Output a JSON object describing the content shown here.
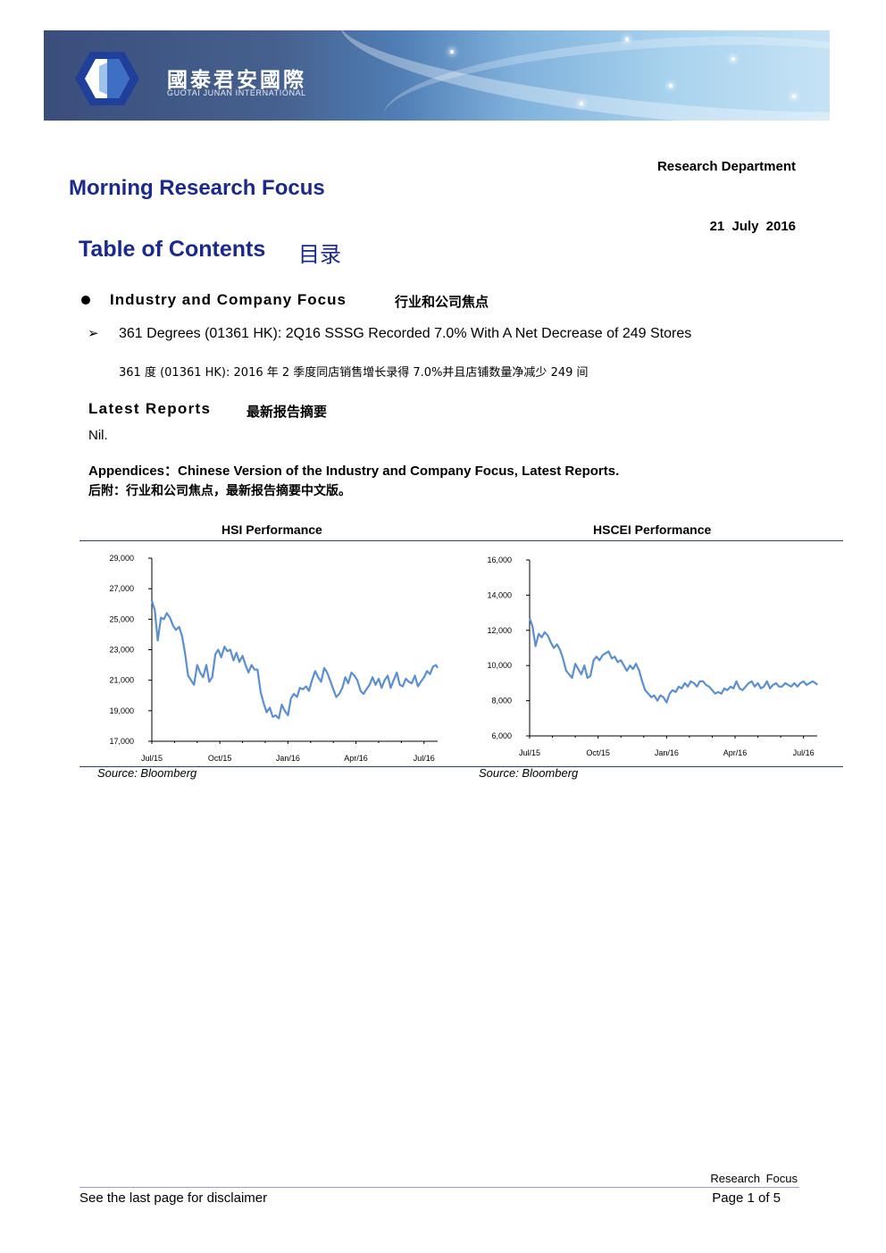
{
  "header": {
    "logo_cn": "國泰君安國際",
    "logo_en": "GUOTAI JUNAN INTERNATIONAL",
    "department": "Research Department",
    "title": "Morning Research Focus",
    "date": "21 July 2016"
  },
  "toc": {
    "heading": "Table of Contents",
    "heading_cn": "目录",
    "section": "Industry and Company Focus",
    "section_cn": "行业和公司焦点",
    "item_arrow": "➢",
    "item": "361 Degrees (01361 HK): 2Q16 SSSG Recorded 7.0% With A Net Decrease of 249 Stores",
    "item_cn": "361 度  (01361 HK): 2016 年 2 季度同店销售增长录得 7.0%并且店铺数量净减少 249 间"
  },
  "latest": {
    "heading": "Latest Reports",
    "heading_cn": "最新报告摘要",
    "body": "Nil."
  },
  "appendix": {
    "text": "Appendices：Chinese Version of the Industry and Company Focus, Latest Reports.",
    "text_cn": "后附：行业和公司焦点，最新报告摘要中文版。"
  },
  "charts": {
    "source_left": "Source: Bloomberg",
    "source_right": "Source: Bloomberg"
  },
  "chart_data": [
    {
      "type": "line",
      "title": "HSI Performance",
      "xlabel": "",
      "ylabel": "",
      "ylim": [
        17000,
        29000
      ],
      "yticks": [
        "17,000",
        "19,000",
        "21,000",
        "23,000",
        "25,000",
        "27,000",
        "29,000"
      ],
      "ytick_values": [
        17000,
        19000,
        21000,
        23000,
        25000,
        27000,
        29000
      ],
      "xticks": [
        "Jul/15",
        "Oct/15",
        "Jan/16",
        "Apr/16",
        "Jul/16"
      ],
      "xlim": [
        0,
        12.6
      ],
      "line_color": "#5b8fcf",
      "series": [
        {
          "x": [
            0,
            0.13,
            0.26,
            0.4,
            0.53,
            0.66,
            0.8,
            0.93,
            1.06,
            1.2,
            1.33,
            1.46,
            1.6,
            1.73,
            1.86,
            2,
            2.13,
            2.26,
            2.4,
            2.53,
            2.66,
            2.8,
            2.93,
            3.06,
            3.2,
            3.33,
            3.46,
            3.6,
            3.73,
            3.86,
            4,
            4.13,
            4.26,
            4.4,
            4.53,
            4.66,
            4.8,
            4.93,
            5.06,
            5.2,
            5.33,
            5.46,
            5.6,
            5.73,
            5.86,
            6,
            6.13,
            6.26,
            6.4,
            6.53,
            6.66,
            6.8,
            6.93,
            7.06,
            7.2,
            7.33,
            7.46,
            7.6,
            7.73,
            7.86,
            8,
            8.13,
            8.26,
            8.4,
            8.53,
            8.66,
            8.8,
            8.93,
            9.06,
            9.2,
            9.33,
            9.46,
            9.6,
            9.73,
            9.86,
            10,
            10.13,
            10.26,
            10.4,
            10.53,
            10.66,
            10.8,
            10.93,
            11.06,
            11.2,
            11.33,
            11.46,
            11.6,
            11.73,
            11.86,
            12,
            12.13,
            12.26,
            12.4,
            12.53,
            12.6
          ],
          "y": [
            26200,
            25600,
            23600,
            25100,
            25000,
            25400,
            25100,
            24600,
            24300,
            24500,
            23900,
            22800,
            21300,
            21000,
            20700,
            22000,
            21500,
            21200,
            22000,
            20900,
            21200,
            22700,
            23000,
            22500,
            23200,
            22900,
            23000,
            22300,
            22800,
            22200,
            22600,
            22000,
            21500,
            22000,
            21700,
            21700,
            20200,
            19500,
            18900,
            19200,
            18600,
            18700,
            18500,
            19400,
            19000,
            18700,
            19800,
            20100,
            19900,
            20500,
            20400,
            20600,
            20300,
            21000,
            21600,
            21200,
            20900,
            21800,
            21500,
            21000,
            20400,
            19900,
            20100,
            20500,
            21200,
            20800,
            21500,
            21300,
            21000,
            20300,
            20100,
            20400,
            20700,
            21200,
            20700,
            21100,
            20500,
            21000,
            21300,
            20500,
            21000,
            21500,
            20700,
            20600,
            21100,
            20900,
            20800,
            21300,
            20600,
            20900,
            21200,
            21600,
            21400,
            21900,
            22000,
            21800
          ]
        }
      ]
    },
    {
      "type": "line",
      "title": "HSCEI Performance",
      "xlabel": "",
      "ylabel": "",
      "ylim": [
        6000,
        16000
      ],
      "yticks": [
        "6,000",
        "8,000",
        "10,000",
        "12,000",
        "14,000",
        "16,000"
      ],
      "ytick_values": [
        6000,
        8000,
        10000,
        12000,
        14000,
        16000
      ],
      "xticks": [
        "Jul/15",
        "Oct/15",
        "Jan/16",
        "Apr/16",
        "Jul/16"
      ],
      "xlim": [
        0,
        12.6
      ],
      "line_color": "#5b8fcf",
      "series": [
        {
          "x": [
            0,
            0.13,
            0.26,
            0.4,
            0.53,
            0.66,
            0.8,
            0.93,
            1.06,
            1.2,
            1.33,
            1.46,
            1.6,
            1.73,
            1.86,
            2,
            2.13,
            2.26,
            2.4,
            2.53,
            2.66,
            2.8,
            2.93,
            3.06,
            3.2,
            3.33,
            3.46,
            3.6,
            3.73,
            3.86,
            4,
            4.13,
            4.26,
            4.4,
            4.53,
            4.66,
            4.8,
            4.93,
            5.06,
            5.2,
            5.33,
            5.46,
            5.6,
            5.73,
            5.86,
            6,
            6.13,
            6.26,
            6.4,
            6.53,
            6.66,
            6.8,
            6.93,
            7.06,
            7.2,
            7.33,
            7.46,
            7.6,
            7.73,
            7.86,
            8,
            8.13,
            8.26,
            8.4,
            8.53,
            8.66,
            8.8,
            8.93,
            9.06,
            9.2,
            9.33,
            9.46,
            9.6,
            9.73,
            9.86,
            10,
            10.13,
            10.26,
            10.4,
            10.53,
            10.66,
            10.8,
            10.93,
            11.06,
            11.2,
            11.33,
            11.46,
            11.6,
            11.73,
            11.86,
            12,
            12.13,
            12.26,
            12.4,
            12.53,
            12.6
          ],
          "y": [
            12700,
            12200,
            11100,
            11800,
            11600,
            11900,
            11700,
            11300,
            11000,
            11200,
            10900,
            10400,
            9700,
            9500,
            9300,
            10100,
            9800,
            9500,
            10000,
            9300,
            9400,
            10300,
            10500,
            10300,
            10600,
            10700,
            10800,
            10400,
            10500,
            10200,
            10300,
            10000,
            9700,
            10000,
            9800,
            10100,
            9700,
            9100,
            8600,
            8400,
            8200,
            8300,
            8000,
            8300,
            8200,
            7900,
            8400,
            8600,
            8500,
            8800,
            8700,
            9000,
            8800,
            9100,
            9000,
            8800,
            9100,
            9100,
            8900,
            8800,
            8600,
            8400,
            8500,
            8400,
            8700,
            8600,
            8800,
            8700,
            9100,
            8700,
            8600,
            8800,
            9000,
            9100,
            8800,
            9000,
            8700,
            8800,
            9100,
            8700,
            8900,
            9000,
            8800,
            8800,
            9000,
            8900,
            8800,
            9000,
            8800,
            9000,
            9100,
            8900,
            9000,
            9100,
            9000,
            8900
          ]
        }
      ]
    }
  ],
  "footer": {
    "label": "Research Focus",
    "disclaimer": "See the last page for disclaimer",
    "page": "Page 1 of 5"
  }
}
